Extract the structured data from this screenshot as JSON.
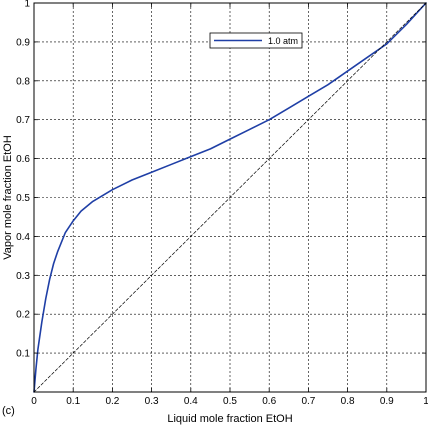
{
  "chart_data": {
    "type": "line",
    "title": "",
    "xlabel": "Liquid mole fraction EtOH",
    "ylabel": "Vapor mole fraction EtOH",
    "xlim": [
      0,
      1
    ],
    "ylim": [
      0,
      1
    ],
    "xticks": [
      0,
      0.1,
      0.2,
      0.3,
      0.4,
      0.5,
      0.6,
      0.7,
      0.8,
      0.9,
      1
    ],
    "yticks": [
      0.1,
      0.2,
      0.3,
      0.4,
      0.5,
      0.6,
      0.7,
      0.8,
      0.9,
      1
    ],
    "xtick_labels": [
      "0",
      "0.1",
      "0.2",
      "0.3",
      "0.4",
      "0.5",
      "0.6",
      "0.7",
      "0.8",
      "0.9",
      "1"
    ],
    "ytick_labels": [
      "0.1",
      "0.2",
      "0.3",
      "0.4",
      "0.5",
      "0.6",
      "0.7",
      "0.8",
      "0.9",
      "1"
    ],
    "grid": true,
    "legend_position": "top-right",
    "panel_label": "(c)",
    "series": [
      {
        "name": "1.0 atm",
        "color": "#1f3fa6",
        "style": "solid",
        "x": [
          0,
          0.005,
          0.01,
          0.02,
          0.03,
          0.04,
          0.05,
          0.06,
          0.08,
          0.1,
          0.12,
          0.15,
          0.2,
          0.25,
          0.3,
          0.35,
          0.4,
          0.45,
          0.5,
          0.55,
          0.6,
          0.65,
          0.7,
          0.75,
          0.8,
          0.85,
          0.9,
          0.95,
          1.0
        ],
        "y": [
          0,
          0.06,
          0.11,
          0.18,
          0.24,
          0.29,
          0.33,
          0.36,
          0.41,
          0.44,
          0.465,
          0.49,
          0.52,
          0.545,
          0.565,
          0.585,
          0.605,
          0.625,
          0.65,
          0.675,
          0.7,
          0.73,
          0.76,
          0.79,
          0.825,
          0.86,
          0.895,
          0.945,
          1.0
        ]
      },
      {
        "name": "",
        "color": "#000000",
        "style": "dashed",
        "x": [
          0,
          1
        ],
        "y": [
          0,
          1
        ]
      }
    ]
  }
}
